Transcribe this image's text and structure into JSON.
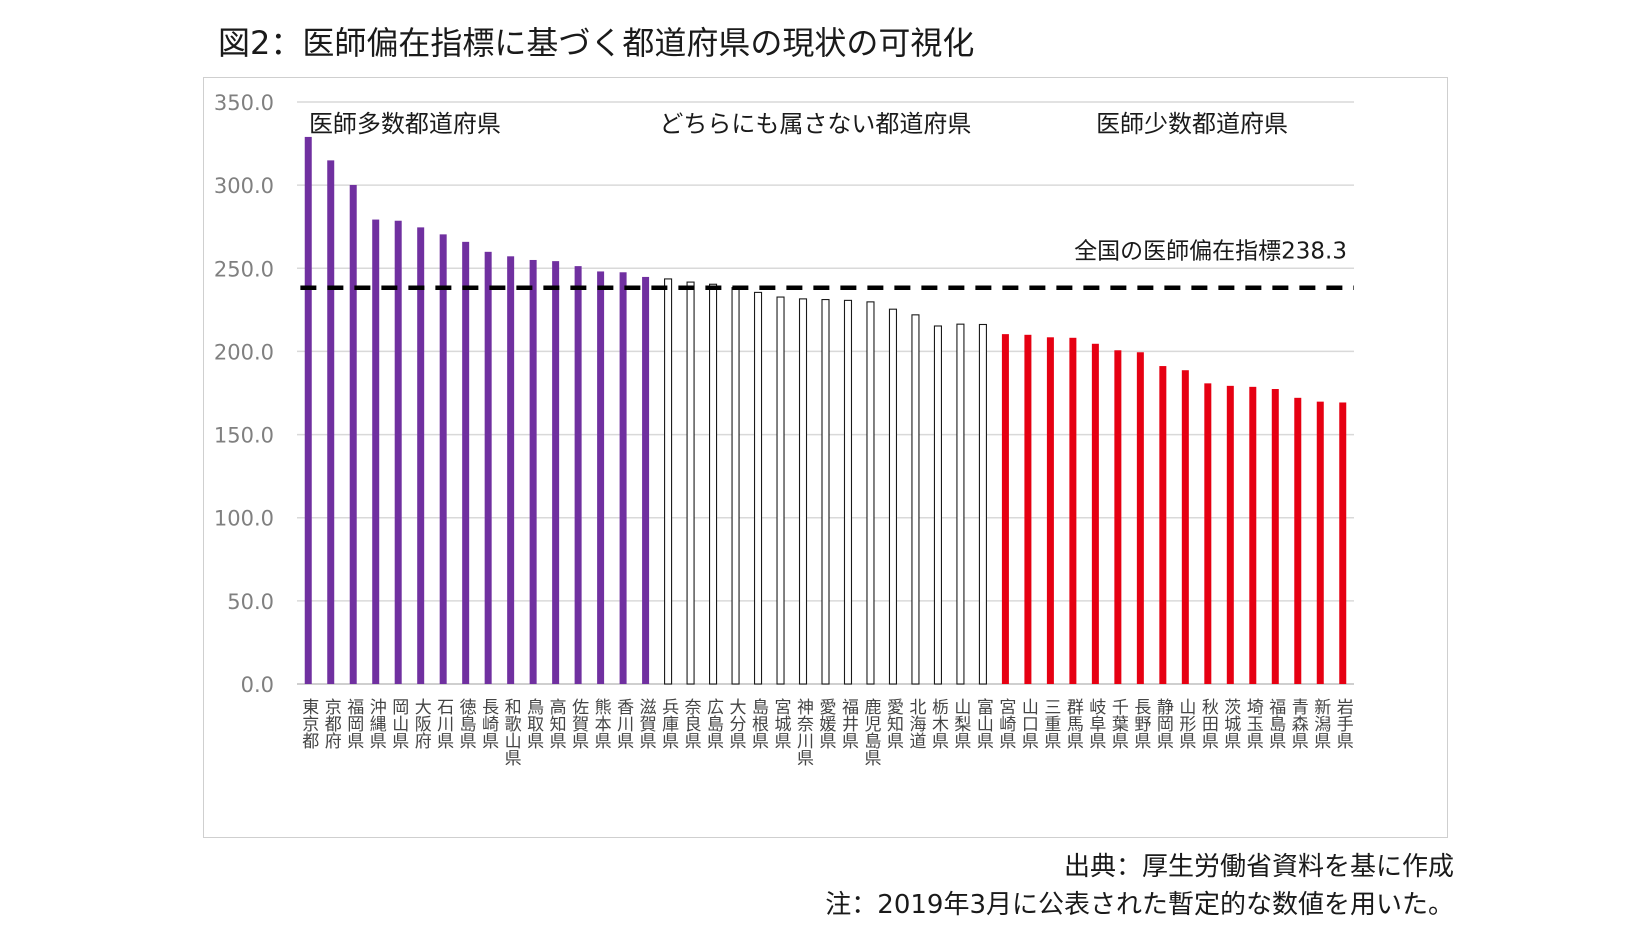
{
  "figure": {
    "title": "図2：医師偏在指標に基づく都道府県の現状の可視化",
    "source": "出典：厚生労働省資料を基に作成",
    "note": "注：2019年3月に公表された暫定的な数値を用いた。"
  },
  "chart_data": {
    "type": "bar",
    "categories": [
      "東京都",
      "京都府",
      "福岡県",
      "沖縄県",
      "岡山県",
      "大阪府",
      "石川県",
      "徳島県",
      "長崎県",
      "和歌山県",
      "鳥取県",
      "高知県",
      "佐賀県",
      "熊本県",
      "香川県",
      "滋賀県",
      "兵庫県",
      "奈良県",
      "広島県",
      "大分県",
      "島根県",
      "宮城県",
      "神奈川県",
      "愛媛県",
      "福井県",
      "鹿児島県",
      "愛知県",
      "北海道",
      "栃木県",
      "山梨県",
      "富山県",
      "宮崎県",
      "山口県",
      "三重県",
      "群馬県",
      "岐阜県",
      "千葉県",
      "長野県",
      "静岡県",
      "山形県",
      "秋田県",
      "茨城県",
      "埼玉県",
      "福島県",
      "青森県",
      "新潟県",
      "岩手県"
    ],
    "values": [
      329.0,
      314.9,
      300.1,
      279.3,
      278.6,
      274.6,
      270.4,
      265.9,
      259.9,
      257.2,
      255.0,
      254.3,
      251.3,
      248.1,
      247.6,
      244.8,
      243.6,
      241.7,
      240.4,
      238.4,
      235.5,
      232.7,
      231.6,
      231.2,
      230.7,
      229.8,
      225.4,
      222.0,
      215.3,
      216.4,
      216.2,
      210.4,
      210.0,
      208.5,
      208.2,
      204.6,
      200.7,
      199.5,
      191.2,
      188.7,
      180.8,
      179.3,
      178.7,
      177.4,
      172.1,
      169.8,
      169.3
    ],
    "groups": [
      {
        "label": "医師多数都道府県",
        "count": 16,
        "color": "#7030a0",
        "style": "filled"
      },
      {
        "label": "どちらにも属さない都道府県",
        "count": 15,
        "color": "#1a1a1a",
        "style": "outline"
      },
      {
        "label": "医師少数都道府県",
        "count": 16,
        "color": "#e60012",
        "style": "filled"
      }
    ],
    "reference_line": {
      "value": 238.3,
      "label": "全国の医師偏在指標238.3",
      "color": "#000000",
      "style": "dashed"
    },
    "ylim": [
      0,
      350
    ],
    "yticks": [
      "0.0",
      "50.0",
      "100.0",
      "150.0",
      "200.0",
      "250.0",
      "300.0",
      "350.0"
    ],
    "ytick_values": [
      0,
      50,
      100,
      150,
      200,
      250,
      300,
      350
    ],
    "grid": true,
    "xlabel": "",
    "ylabel": ""
  }
}
